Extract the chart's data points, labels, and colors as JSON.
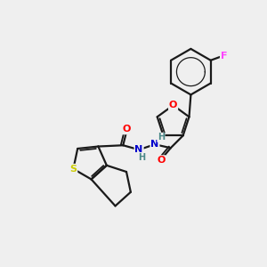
{
  "background_color": "#efefef",
  "bond_color": "#1a1a1a",
  "atom_colors": {
    "O": "#ff0000",
    "N": "#0000cc",
    "S": "#cccc00",
    "F": "#ff44ff",
    "H": "#4a8888",
    "C": "#1a1a1a"
  },
  "figsize": [
    3.0,
    3.0
  ],
  "dpi": 100
}
